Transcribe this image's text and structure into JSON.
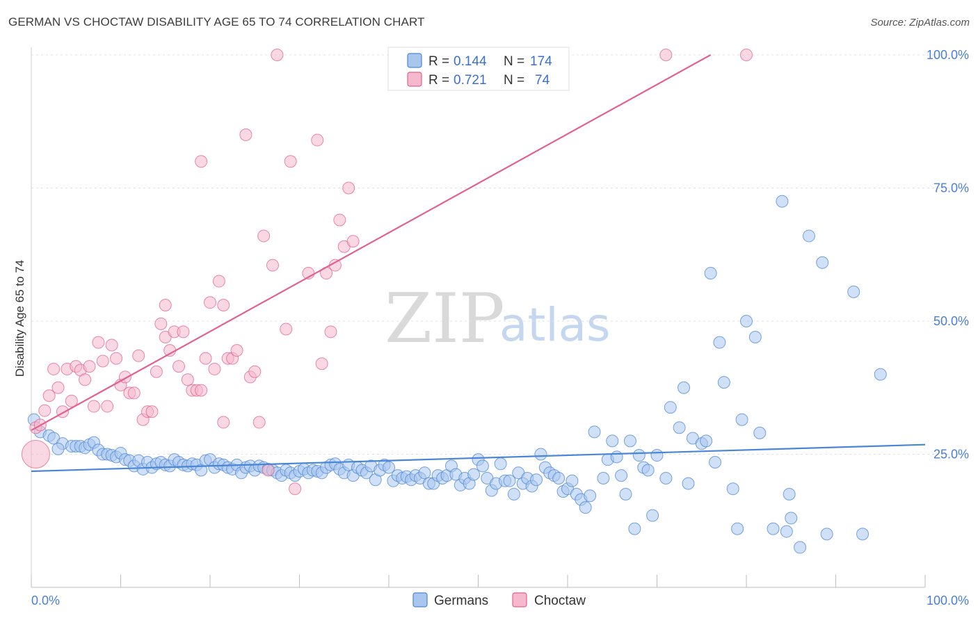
{
  "title": "GERMAN VS CHOCTAW DISABILITY AGE 65 TO 74 CORRELATION CHART",
  "source": "Source: ZipAtlas.com",
  "watermark": {
    "zip": "ZIP",
    "atlas": "atlas"
  },
  "legend_top": [
    {
      "r_label": "R =",
      "r_value": "0.144",
      "n_label": "N =",
      "n_value": "174",
      "color": "#a9c6ef"
    },
    {
      "r_label": "R =",
      "r_value": "0.721",
      "n_label": "N =",
      "n_value": "74",
      "color": "#f5b8cc"
    }
  ],
  "legend_bottom": [
    {
      "label": "Germans",
      "color": "#a9c6ef"
    },
    {
      "label": "Choctaw",
      "color": "#f5b8cc"
    }
  ],
  "chart_data": {
    "type": "scatter",
    "title": "GERMAN VS CHOCTAW DISABILITY AGE 65 TO 74 CORRELATION CHART",
    "xlabel": "",
    "ylabel": "Disability Age 65 to 74",
    "xlim": [
      0,
      100
    ],
    "ylim": [
      0,
      100
    ],
    "x_tick_labels": [
      "0.0%",
      "100.0%"
    ],
    "y_tick_labels": [
      "25.0%",
      "50.0%",
      "75.0%",
      "100.0%"
    ],
    "y_tick_values": [
      25,
      50,
      75,
      100
    ],
    "grid": true,
    "legend_position": "top-center",
    "series": [
      {
        "name": "Germans",
        "color": "#4a86d6",
        "fill": "#a9c6ef",
        "trend": {
          "x": [
            0,
            100
          ],
          "y": [
            21.8,
            26.8
          ]
        },
        "points": [
          [
            0.3,
            31.5
          ],
          [
            1.0,
            29.2
          ],
          [
            2.0,
            28.5
          ],
          [
            2.5,
            28.0
          ],
          [
            3.5,
            27.0
          ],
          [
            4.5,
            26.5
          ],
          [
            3.0,
            26.0
          ],
          [
            5.0,
            26.5
          ],
          [
            5.5,
            26.5
          ],
          [
            6.0,
            26.2
          ],
          [
            6.5,
            26.8
          ],
          [
            7.0,
            27.2
          ],
          [
            7.5,
            25.8
          ],
          [
            8.0,
            25.0
          ],
          [
            8.5,
            25.0
          ],
          [
            9.0,
            24.8
          ],
          [
            9.5,
            24.5
          ],
          [
            10.0,
            25.2
          ],
          [
            10.5,
            24.0
          ],
          [
            11.0,
            23.8
          ],
          [
            11.5,
            22.8
          ],
          [
            12.0,
            23.8
          ],
          [
            12.5,
            22.2
          ],
          [
            13.0,
            23.5
          ],
          [
            13.5,
            22.5
          ],
          [
            14.0,
            23.2
          ],
          [
            14.5,
            23.5
          ],
          [
            15.0,
            23.0
          ],
          [
            15.5,
            22.8
          ],
          [
            16.0,
            24.0
          ],
          [
            16.5,
            23.5
          ],
          [
            17.0,
            23.0
          ],
          [
            17.5,
            22.8
          ],
          [
            18.0,
            23.2
          ],
          [
            18.5,
            23.0
          ],
          [
            19.0,
            22.0
          ],
          [
            19.5,
            23.8
          ],
          [
            20.0,
            24.0
          ],
          [
            20.5,
            22.5
          ],
          [
            21.0,
            23.2
          ],
          [
            21.5,
            23.0
          ],
          [
            22.0,
            22.5
          ],
          [
            22.5,
            22.2
          ],
          [
            23.0,
            23.0
          ],
          [
            23.5,
            21.5
          ],
          [
            24.0,
            22.5
          ],
          [
            24.5,
            22.8
          ],
          [
            25.0,
            22.0
          ],
          [
            25.5,
            22.8
          ],
          [
            26.0,
            22.5
          ],
          [
            26.5,
            22.2
          ],
          [
            27.0,
            22.0
          ],
          [
            27.5,
            21.5
          ],
          [
            28.0,
            21.0
          ],
          [
            28.5,
            22.0
          ],
          [
            29.0,
            21.5
          ],
          [
            29.5,
            21.0
          ],
          [
            30.0,
            21.8
          ],
          [
            30.5,
            22.2
          ],
          [
            31.0,
            21.5
          ],
          [
            31.5,
            22.0
          ],
          [
            32.0,
            21.8
          ],
          [
            32.5,
            21.5
          ],
          [
            33.0,
            22.5
          ],
          [
            33.5,
            23.0
          ],
          [
            34.0,
            23.2
          ],
          [
            34.5,
            22.2
          ],
          [
            35.0,
            21.5
          ],
          [
            35.5,
            23.0
          ],
          [
            36.0,
            21.0
          ],
          [
            36.5,
            22.5
          ],
          [
            37.0,
            22.0
          ],
          [
            37.5,
            21.5
          ],
          [
            38.0,
            22.8
          ],
          [
            38.5,
            20.2
          ],
          [
            39.0,
            22.0
          ],
          [
            39.5,
            23.0
          ],
          [
            40.0,
            22.5
          ],
          [
            40.5,
            20.0
          ],
          [
            41.0,
            21.0
          ],
          [
            41.5,
            20.5
          ],
          [
            42.0,
            20.8
          ],
          [
            42.5,
            20.2
          ],
          [
            43.0,
            21.0
          ],
          [
            43.5,
            20.5
          ],
          [
            44.0,
            21.5
          ],
          [
            44.5,
            19.5
          ],
          [
            45.0,
            19.5
          ],
          [
            45.5,
            21.0
          ],
          [
            46.0,
            20.5
          ],
          [
            46.5,
            21.0
          ],
          [
            47.0,
            22.8
          ],
          [
            47.5,
            21.2
          ],
          [
            48.0,
            19.2
          ],
          [
            48.5,
            20.5
          ],
          [
            49.0,
            19.5
          ],
          [
            49.5,
            21.2
          ],
          [
            50.0,
            24.0
          ],
          [
            50.5,
            22.8
          ],
          [
            51.0,
            20.5
          ],
          [
            51.5,
            18.2
          ],
          [
            52.0,
            19.5
          ],
          [
            52.5,
            23.2
          ],
          [
            53.0,
            20.0
          ],
          [
            53.5,
            20.0
          ],
          [
            54.0,
            17.5
          ],
          [
            54.5,
            21.5
          ],
          [
            55.0,
            19.5
          ],
          [
            55.5,
            20.5
          ],
          [
            56.0,
            19.0
          ],
          [
            56.5,
            20.2
          ],
          [
            57.0,
            25.0
          ],
          [
            57.5,
            22.5
          ],
          [
            58.0,
            21.5
          ],
          [
            58.5,
            21.0
          ],
          [
            59.0,
            20.5
          ],
          [
            59.5,
            18.0
          ],
          [
            60.0,
            18.5
          ],
          [
            60.5,
            20.0
          ],
          [
            61.0,
            17.5
          ],
          [
            61.5,
            16.5
          ],
          [
            62.0,
            15.0
          ],
          [
            62.5,
            17.2
          ],
          [
            63.0,
            29.2
          ],
          [
            64.0,
            20.5
          ],
          [
            64.5,
            24.0
          ],
          [
            65.0,
            27.5
          ],
          [
            65.5,
            24.5
          ],
          [
            66.0,
            21.0
          ],
          [
            66.5,
            17.5
          ],
          [
            67.0,
            27.5
          ],
          [
            67.5,
            11.0
          ],
          [
            68.0,
            24.8
          ],
          [
            68.5,
            22.5
          ],
          [
            69.0,
            22.0
          ],
          [
            69.5,
            13.5
          ],
          [
            70.0,
            24.8
          ],
          [
            71.0,
            20.5
          ],
          [
            71.5,
            33.8
          ],
          [
            72.5,
            30.0
          ],
          [
            73.0,
            37.5
          ],
          [
            73.5,
            19.5
          ],
          [
            74.0,
            28.0
          ],
          [
            75.0,
            27.0
          ],
          [
            75.5,
            27.5
          ],
          [
            76.0,
            59.0
          ],
          [
            76.5,
            23.5
          ],
          [
            77.0,
            46.0
          ],
          [
            77.5,
            38.5
          ],
          [
            78.5,
            18.5
          ],
          [
            79.0,
            11.0
          ],
          [
            79.5,
            31.5
          ],
          [
            80.0,
            50.0
          ],
          [
            81.0,
            47.0
          ],
          [
            81.5,
            29.0
          ],
          [
            83.0,
            11.0
          ],
          [
            84.0,
            72.5
          ],
          [
            84.5,
            10.5
          ],
          [
            84.8,
            17.5
          ],
          [
            85.0,
            13.0
          ],
          [
            86.0,
            7.5
          ],
          [
            87.0,
            66.0
          ],
          [
            88.5,
            61.0
          ],
          [
            89.0,
            10.0
          ],
          [
            92.0,
            55.5
          ],
          [
            93.0,
            10.0
          ],
          [
            95.0,
            40.0
          ]
        ]
      },
      {
        "name": "Choctaw",
        "color": "#e0628c",
        "fill": "#f5b8cc",
        "trend": {
          "x": [
            0,
            76
          ],
          "y": [
            29.5,
            100
          ]
        },
        "points": [
          [
            0.5,
            30.0
          ],
          [
            1.0,
            30.5
          ],
          [
            1.5,
            33.2
          ],
          [
            2.0,
            36.0
          ],
          [
            2.5,
            41.0
          ],
          [
            3.0,
            37.5
          ],
          [
            3.5,
            33.0
          ],
          [
            4.0,
            41.0
          ],
          [
            4.5,
            35.0
          ],
          [
            5.0,
            41.5
          ],
          [
            5.5,
            40.8
          ],
          [
            6.0,
            39.0
          ],
          [
            6.5,
            41.5
          ],
          [
            7.0,
            34.0
          ],
          [
            7.5,
            46.0
          ],
          [
            8.0,
            42.5
          ],
          [
            8.5,
            34.0
          ],
          [
            9.0,
            45.5
          ],
          [
            9.5,
            43.0
          ],
          [
            10.0,
            38.0
          ],
          [
            10.5,
            39.5
          ],
          [
            11.0,
            36.5
          ],
          [
            11.5,
            36.5
          ],
          [
            12.0,
            43.5
          ],
          [
            12.5,
            31.5
          ],
          [
            13.0,
            33.0
          ],
          [
            13.5,
            33.0
          ],
          [
            14.0,
            40.5
          ],
          [
            14.5,
            49.5
          ],
          [
            15.0,
            47.0
          ],
          [
            15.5,
            44.5
          ],
          [
            16.0,
            48.0
          ],
          [
            16.5,
            41.5
          ],
          [
            17.0,
            48.0
          ],
          [
            17.5,
            39.0
          ],
          [
            18.0,
            37.0
          ],
          [
            18.5,
            37.0
          ],
          [
            19.0,
            37.0
          ],
          [
            19.5,
            43.0
          ],
          [
            20.0,
            53.5
          ],
          [
            20.5,
            41.0
          ],
          [
            21.0,
            57.5
          ],
          [
            21.5,
            31.0
          ],
          [
            22.0,
            43.0
          ],
          [
            22.5,
            43.0
          ],
          [
            23.0,
            44.5
          ],
          [
            24.0,
            85.0
          ],
          [
            24.5,
            39.5
          ],
          [
            25.0,
            40.5
          ],
          [
            25.5,
            31.0
          ],
          [
            26.0,
            66.0
          ],
          [
            26.5,
            22.0
          ],
          [
            27.0,
            60.5
          ],
          [
            27.5,
            100.0
          ],
          [
            28.5,
            48.5
          ],
          [
            29.0,
            80.0
          ],
          [
            29.5,
            18.5
          ],
          [
            32.0,
            84.0
          ],
          [
            31.0,
            59.0
          ],
          [
            32.5,
            42.0
          ],
          [
            33.0,
            59.0
          ],
          [
            33.5,
            48.0
          ],
          [
            34.0,
            60.5
          ],
          [
            34.5,
            69.0
          ],
          [
            35.0,
            64.0
          ],
          [
            35.5,
            75.0
          ],
          [
            36.0,
            65.0
          ],
          [
            19.0,
            80.0
          ],
          [
            21.5,
            53.0
          ],
          [
            15.0,
            53.0
          ],
          [
            71.0,
            100.0
          ],
          [
            80.0,
            100.0
          ],
          [
            0.5,
            25.0
          ]
        ]
      }
    ]
  }
}
